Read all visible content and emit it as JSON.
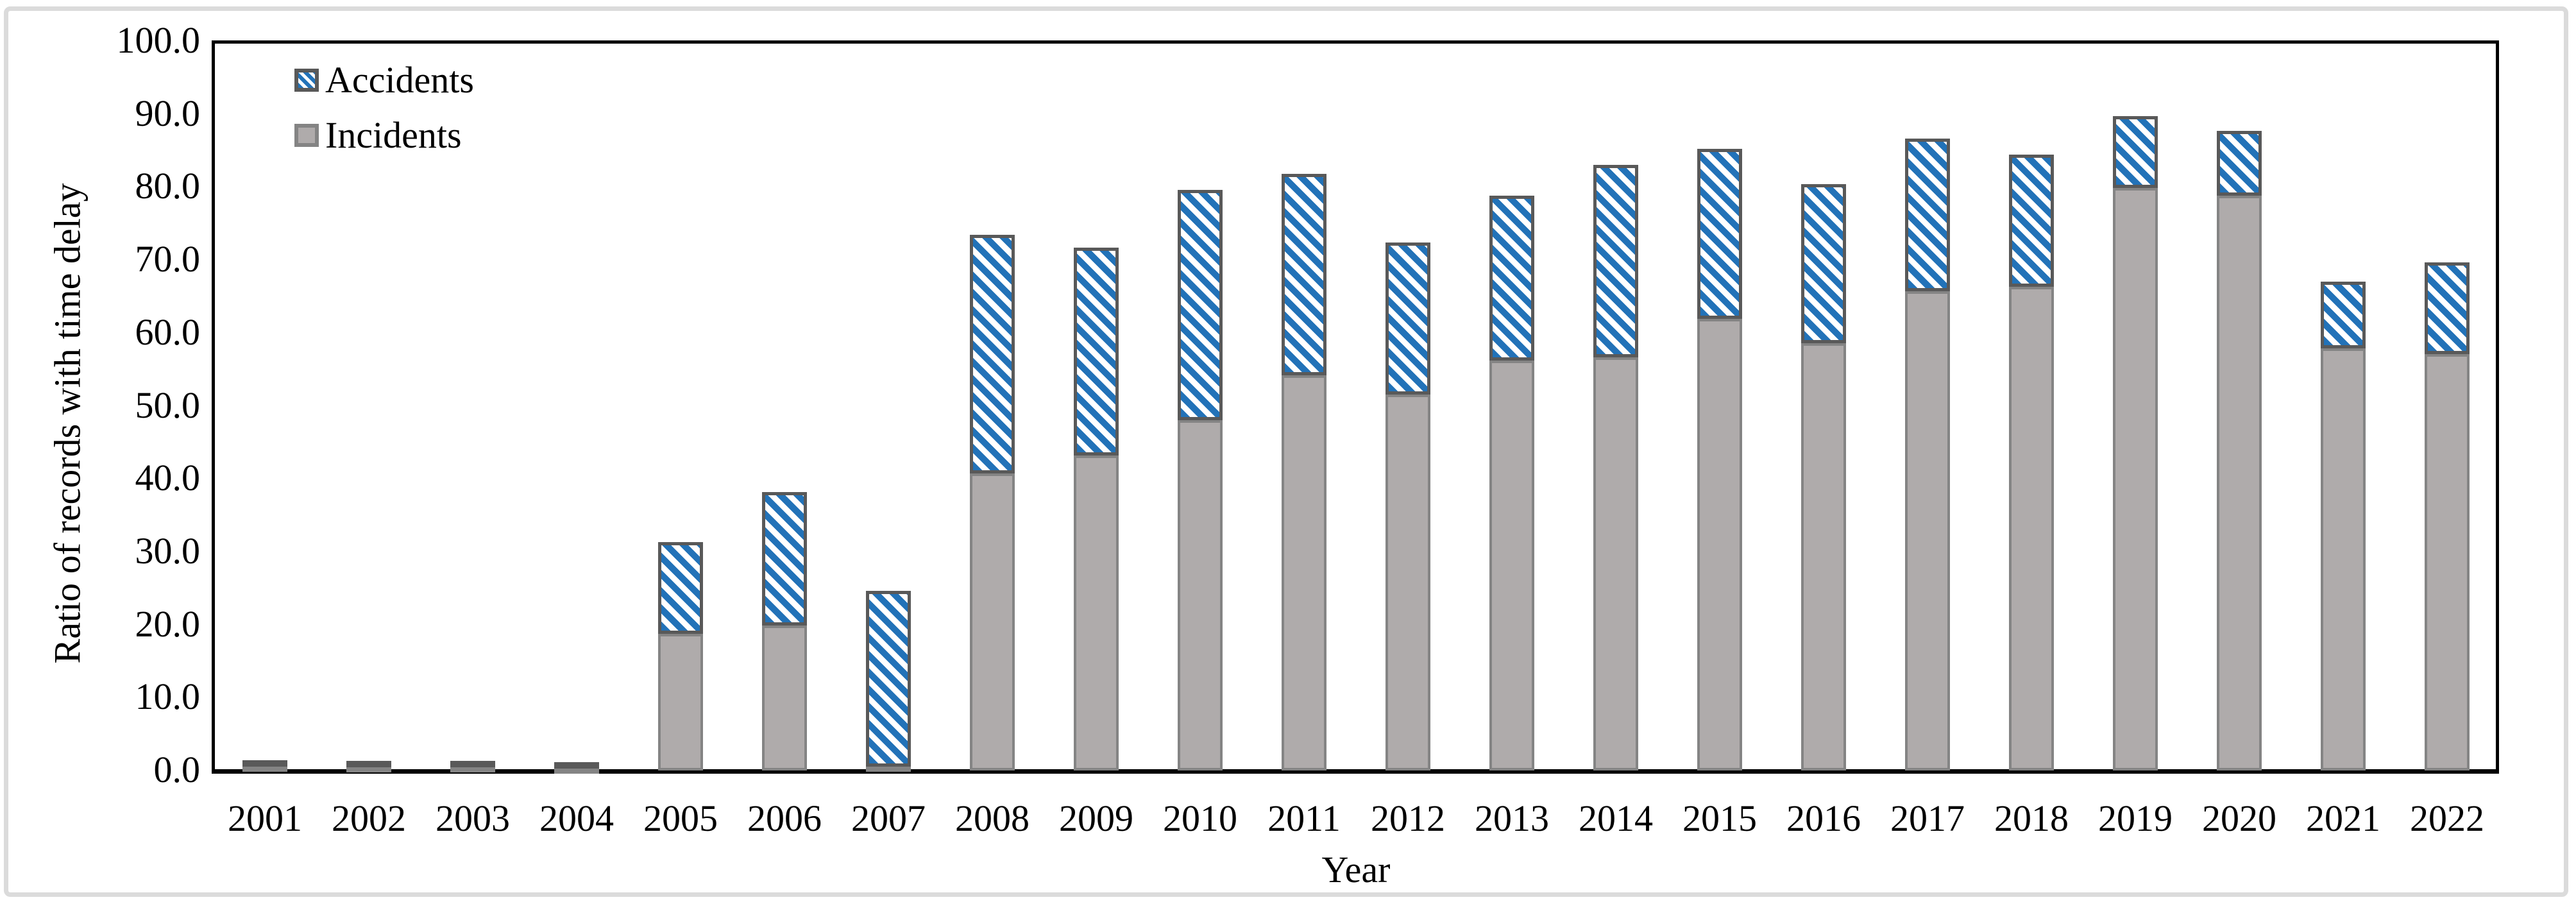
{
  "axes": {
    "y_title": "Ratio of records with time delay",
    "x_title": "Year",
    "y_ticks": [
      "100.0",
      "90.0",
      "80.0",
      "70.0",
      "60.0",
      "50.0",
      "40.0",
      "30.0",
      "20.0",
      "10.0",
      "0.0"
    ]
  },
  "legend": {
    "items": [
      {
        "label": "Accidents",
        "pattern": "blue-diagonal-hatch"
      },
      {
        "label": "Incidents",
        "pattern": "solid-gray"
      }
    ]
  },
  "colors": {
    "accidents_blue": "#2272B8",
    "incidents_gray": "#AFABAB",
    "accidents_border": "#595959",
    "incidents_border": "#848484",
    "axis_frame": "#000000",
    "figure_border": "#DBDBDB",
    "background": "#FFFFFF"
  },
  "chart_data": {
    "type": "bar",
    "stacked": true,
    "title": "",
    "xlabel": "Year",
    "ylabel": "Ratio of records with time delay",
    "ylim": [
      0,
      100
    ],
    "y_tick_step": 10,
    "grid": false,
    "legend_position": "inside-top-left",
    "categories": [
      "2001",
      "2002",
      "2003",
      "2004",
      "2005",
      "2006",
      "2007",
      "2008",
      "2009",
      "2010",
      "2011",
      "2012",
      "2013",
      "2014",
      "2015",
      "2016",
      "2017",
      "2018",
      "2019",
      "2020",
      "2021",
      "2022"
    ],
    "stack_order_bottom_to_top": [
      "Incidents",
      "Accidents"
    ],
    "series": [
      {
        "name": "Incidents",
        "values": [
          0.5,
          0.4,
          0.4,
          0.3,
          18.7,
          19.9,
          0.5,
          40.7,
          43.2,
          48.0,
          54.2,
          51.5,
          56.2,
          56.6,
          61.9,
          58.6,
          65.7,
          66.3,
          79.9,
          78.8,
          57.9,
          57.1
        ]
      },
      {
        "name": "Accidents",
        "values": [
          0.5,
          0.4,
          0.3,
          0.3,
          12.6,
          18.3,
          24.1,
          32.7,
          28.5,
          31.6,
          27.6,
          20.9,
          22.6,
          26.4,
          23.3,
          21.8,
          20.9,
          18.1,
          9.8,
          8.9,
          9.1,
          12.6
        ]
      }
    ],
    "totals": [
      1.0,
      0.8,
      0.7,
      0.6,
      31.3,
      38.2,
      24.6,
      73.4,
      71.7,
      79.6,
      81.8,
      72.4,
      78.8,
      83.0,
      85.2,
      80.4,
      86.6,
      84.4,
      89.7,
      87.7,
      67.0,
      69.7
    ]
  }
}
